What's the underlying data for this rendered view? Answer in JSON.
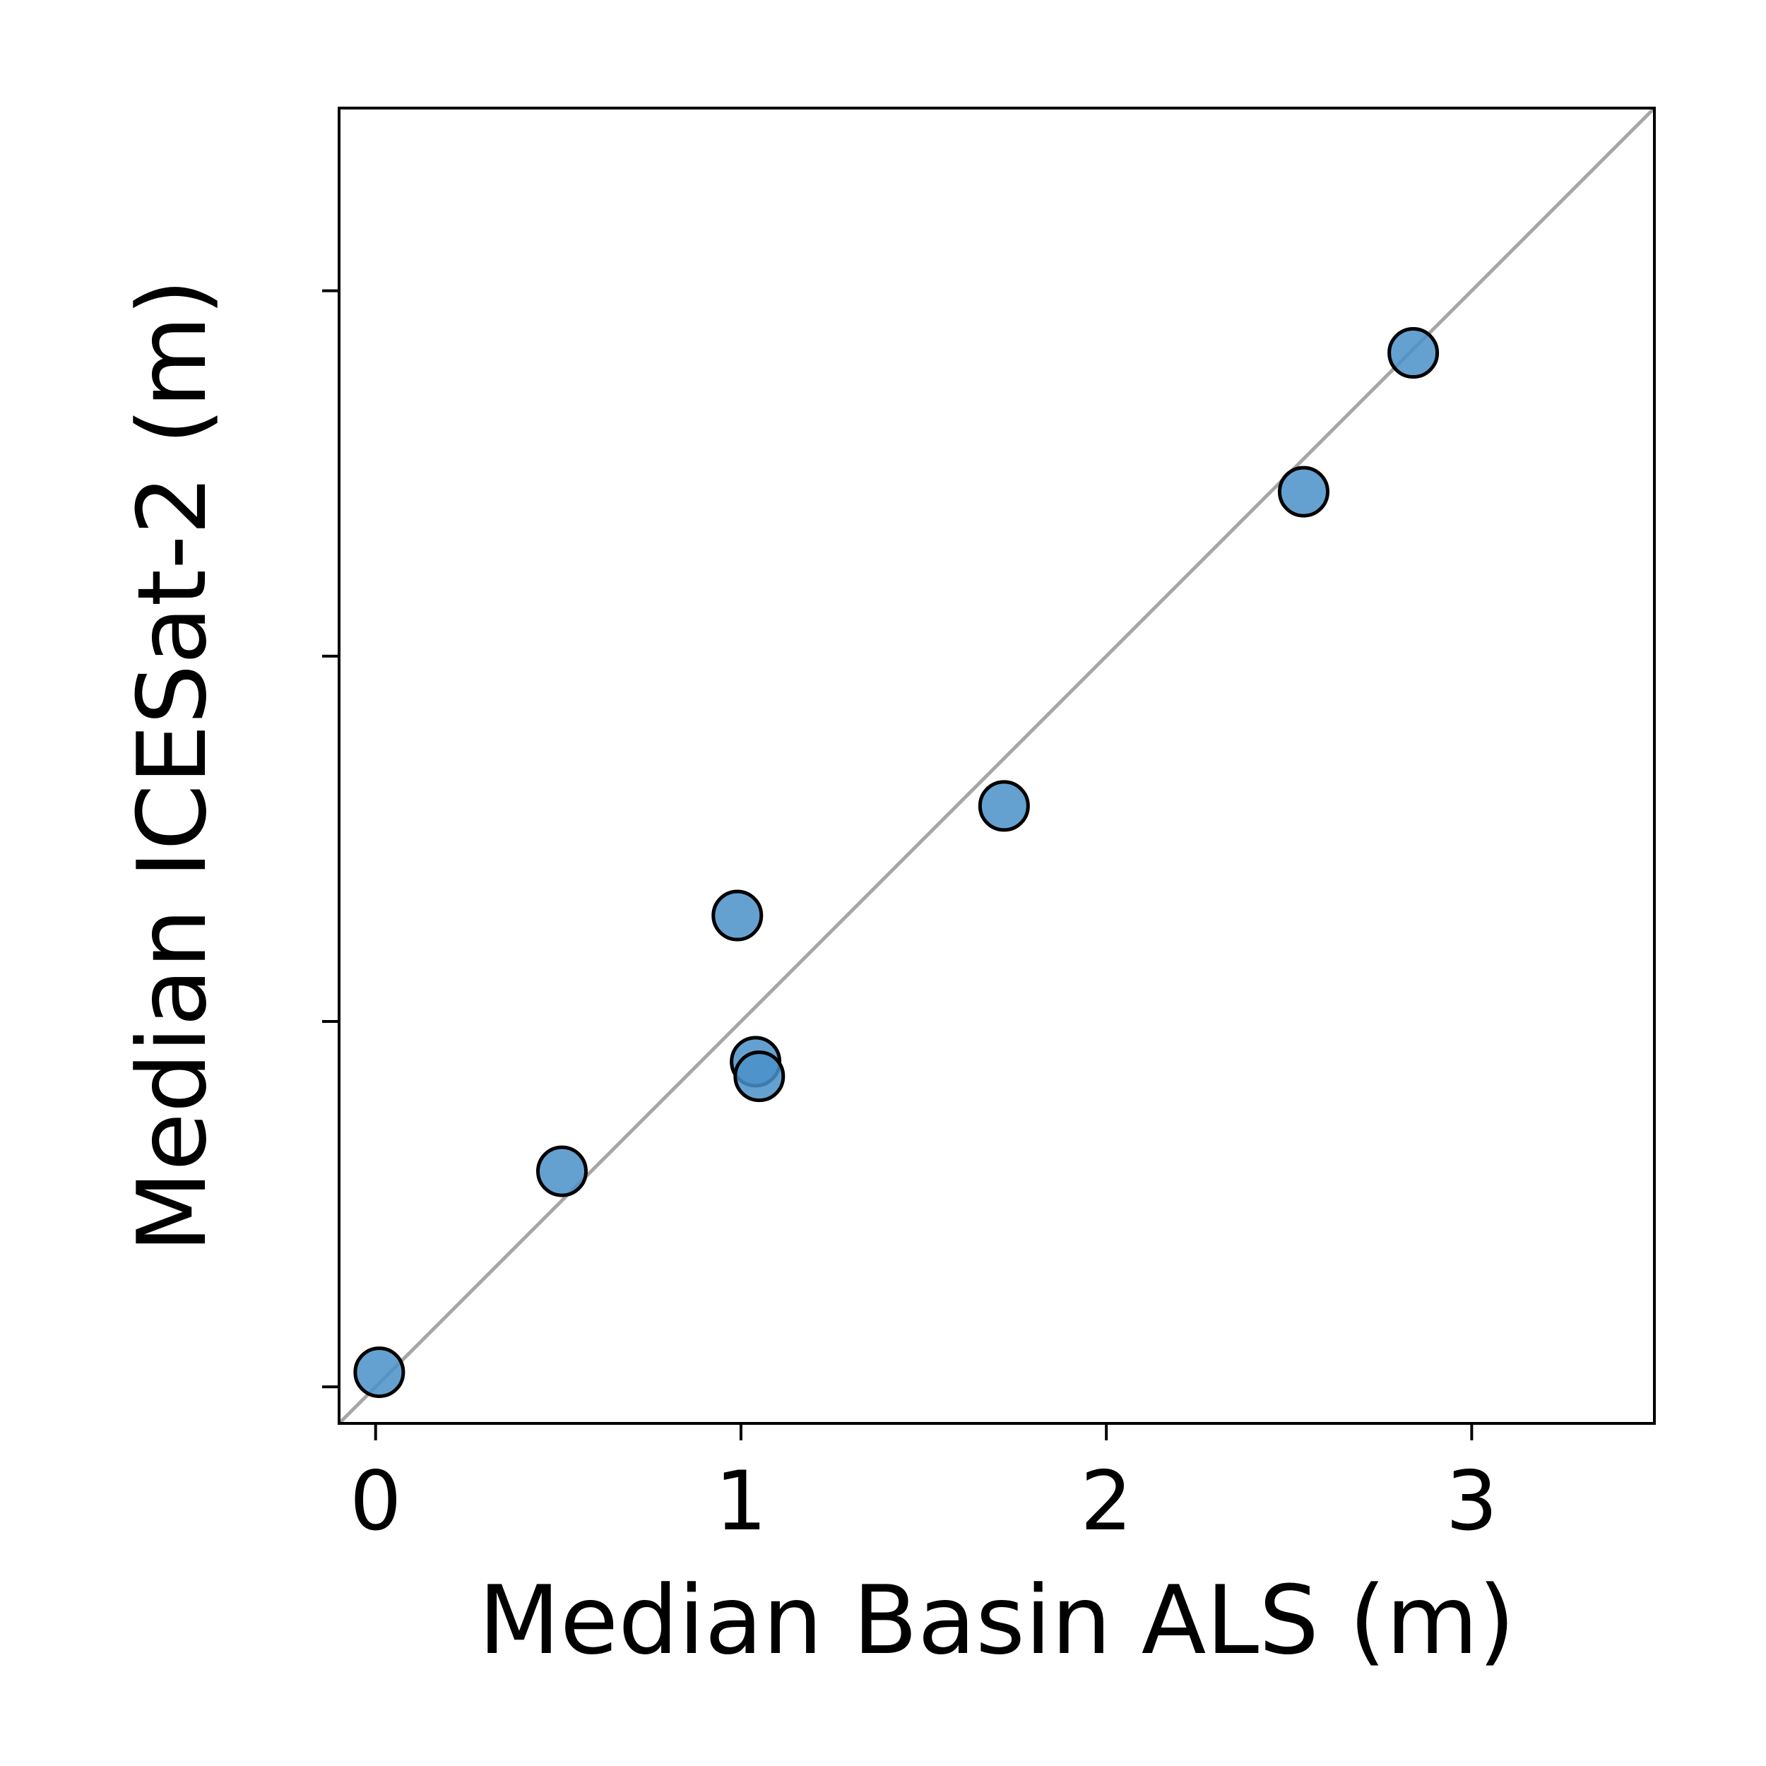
{
  "chart_data": {
    "type": "scatter",
    "title": "",
    "xlabel": "Median Basin ALS (m)",
    "ylabel": "Median ICESat-2 (m)",
    "xlim": [
      -0.1,
      3.5
    ],
    "ylim": [
      -0.1,
      3.5
    ],
    "x_ticks": [
      0,
      1,
      2,
      3
    ],
    "x_tick_labels": [
      "0",
      "1",
      "2",
      "3"
    ],
    "y_ticks": [
      0,
      1,
      2,
      3
    ],
    "y_tick_labels_visible": false,
    "grid": false,
    "reference_line": {
      "type": "identity",
      "color": "#a6a6a6"
    },
    "marker_color": "#4a90c8",
    "marker_edge_color": "#000000",
    "series": [
      {
        "points": [
          {
            "x": 0.01,
            "y": 0.04
          },
          {
            "x": 0.51,
            "y": 0.59
          },
          {
            "x": 0.99,
            "y": 1.29
          },
          {
            "x": 1.04,
            "y": 0.89
          },
          {
            "x": 1.05,
            "y": 0.85
          },
          {
            "x": 1.72,
            "y": 1.59
          },
          {
            "x": 2.54,
            "y": 2.45
          },
          {
            "x": 2.84,
            "y": 2.83
          }
        ]
      }
    ]
  }
}
